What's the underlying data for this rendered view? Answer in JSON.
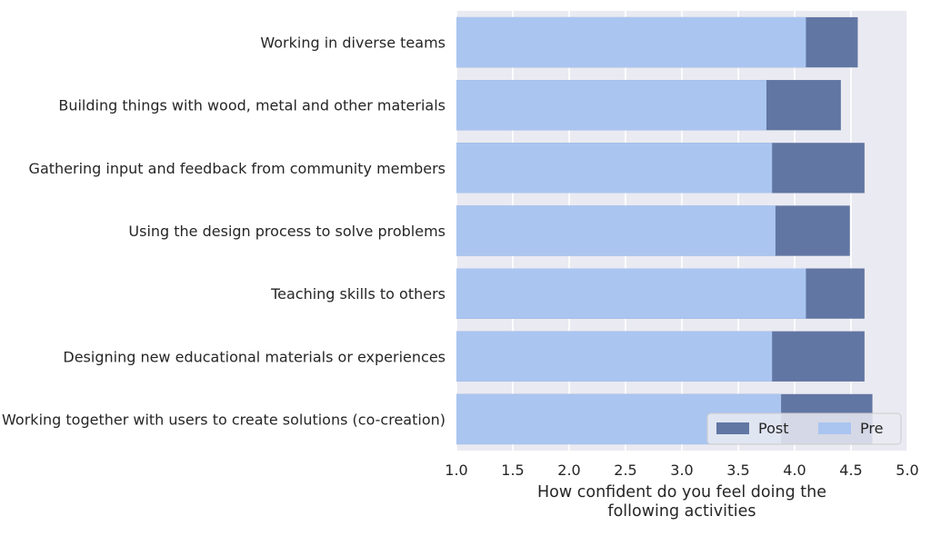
{
  "chart_data": {
    "type": "bar",
    "orientation": "horizontal",
    "stacked_overlay": true,
    "categories": [
      "Working in diverse teams",
      "Building things with wood, metal and other materials",
      "Gathering input and feedback from community members",
      "Using the design process to solve problems",
      "Teaching skills to others",
      "Designing new educational materials or experiences",
      "Working together with users to create solutions (co-creation)"
    ],
    "series": [
      {
        "name": "Post",
        "values": [
          4.56,
          4.41,
          4.62,
          4.49,
          4.62,
          4.62,
          4.69
        ],
        "color": "#6276a3"
      },
      {
        "name": "Pre",
        "values": [
          4.1,
          3.75,
          3.8,
          3.83,
          4.1,
          3.8,
          3.88
        ],
        "color": "#aac5f0"
      }
    ],
    "xlabel": "How confident do you feel doing the\nfollowing activities",
    "ylabel": "",
    "xlim": [
      1.0,
      5.0
    ],
    "xticks": [
      "1.0",
      "1.5",
      "2.0",
      "2.5",
      "3.0",
      "3.5",
      "4.0",
      "4.5",
      "5.0"
    ],
    "grid": true,
    "legend_position": "lower-right",
    "background_color": "#eaeaf2"
  }
}
